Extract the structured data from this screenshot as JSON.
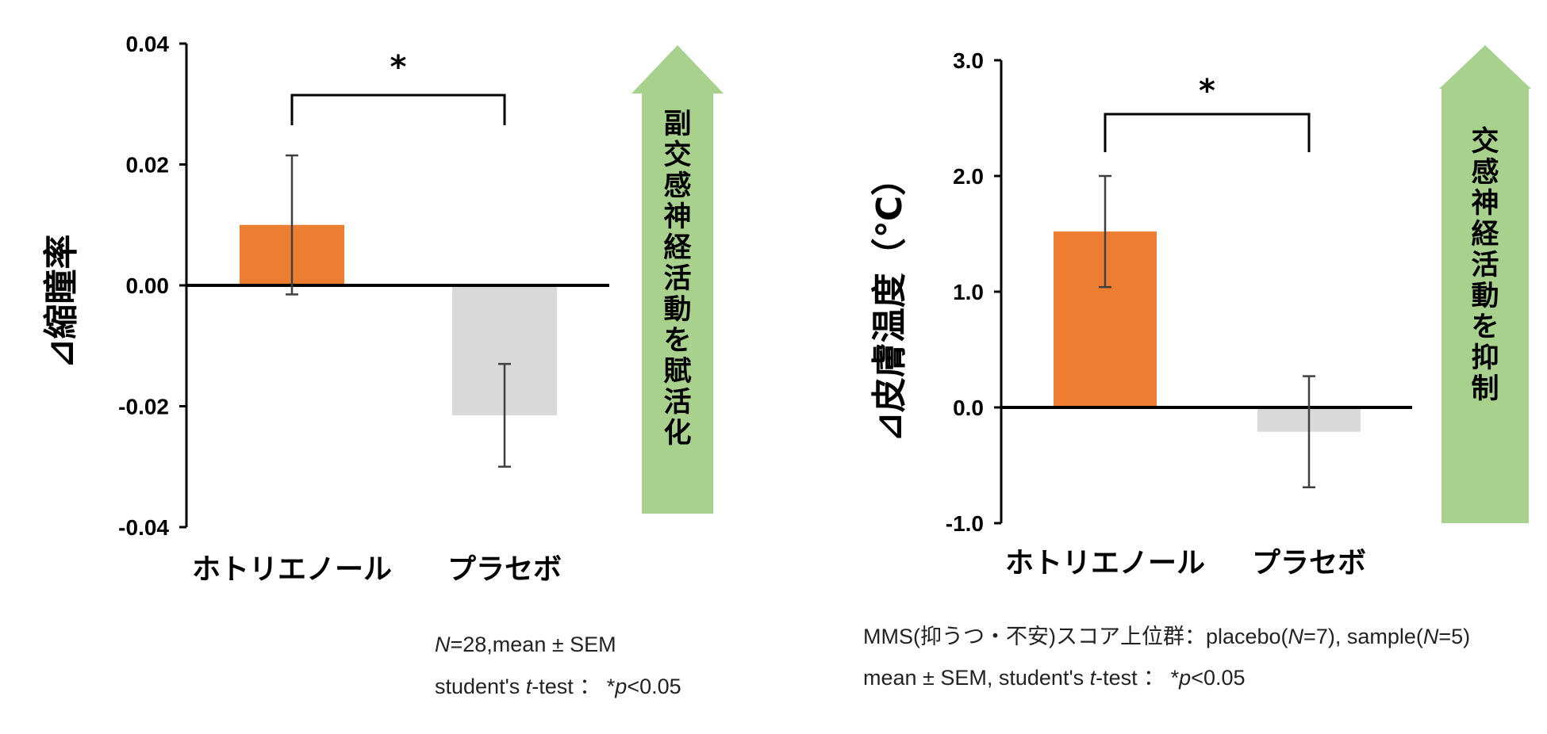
{
  "chart_data": [
    {
      "type": "bar",
      "ylabel": "⊿縮瞳率",
      "categories": [
        "ホトリエノール",
        "プラセボ"
      ],
      "values": [
        0.01,
        -0.0215
      ],
      "errors": [
        0.0115,
        0.0085
      ],
      "colors": [
        "#ed7d31",
        "#d9d9d9"
      ],
      "ylim": [
        -0.04,
        0.04
      ],
      "yticks": [
        0.04,
        0.02,
        0.0,
        -0.02,
        -0.04
      ],
      "ytick_labels": [
        "0.04",
        "0.02",
        "0.00",
        "-0.02",
        "-0.04"
      ],
      "significance": "*",
      "arrow_text": "副交感神経活動を賦活化",
      "arrow_color": "#a9d18e"
    },
    {
      "type": "bar",
      "ylabel": "⊿皮膚温度（℃）",
      "categories": [
        "ホトリエノール",
        "プラセボ"
      ],
      "values": [
        1.52,
        -0.21
      ],
      "errors": [
        0.48,
        0.48
      ],
      "colors": [
        "#ed7d31",
        "#d9d9d9"
      ],
      "ylim": [
        -1.0,
        3.0
      ],
      "yticks": [
        3.0,
        2.0,
        1.0,
        0.0,
        -1.0
      ],
      "ytick_labels": [
        "3.0",
        "2.0",
        "1.0",
        "0.0",
        "-1.0"
      ],
      "significance": "*",
      "arrow_text": "交感神経活動を抑制",
      "arrow_color": "#a9d18e"
    }
  ],
  "notes": {
    "left_line1": {
      "n": "N",
      "rest": "=28,mean ± SEM"
    },
    "left_line2": {
      "pre": "student's ",
      "t": "t",
      "mid": "-test ： *",
      "p": "p",
      "post": "<0.05"
    },
    "right_line1": {
      "pre": "MMS(抑うつ・不安)スコア上位群：placebo(",
      "n1": "N",
      "mid": "=7), sample(",
      "n2": "N",
      "post": "=5)"
    },
    "right_line2": {
      "pre": "mean ± SEM, student's ",
      "t": "t",
      "mid": "-test ： *",
      "p": "p",
      "post": "<0.05"
    }
  }
}
